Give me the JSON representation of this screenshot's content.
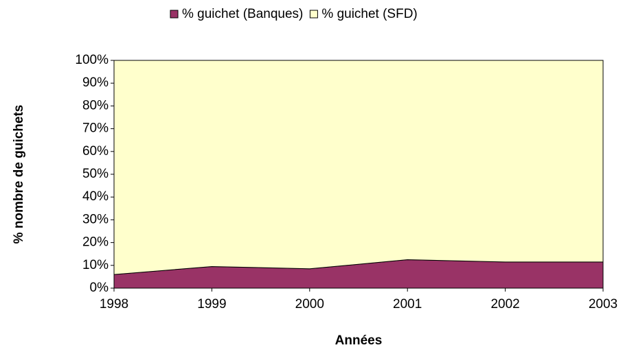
{
  "chart_data": {
    "type": "stacked_area",
    "x_label": "Années",
    "y_label": "% nombre de guichets",
    "x": [
      1998,
      1999,
      2000,
      2001,
      2002,
      2003
    ],
    "xlim": [
      1998,
      2003
    ],
    "xticks": [
      1998,
      1999,
      2000,
      2001,
      2002,
      2003
    ],
    "ylim": [
      0,
      100
    ],
    "yticks": [
      {
        "value": 0,
        "label": "0%"
      },
      {
        "value": 10,
        "label": "10%"
      },
      {
        "value": 20,
        "label": "20%"
      },
      {
        "value": 30,
        "label": "30%"
      },
      {
        "value": 40,
        "label": "40%"
      },
      {
        "value": 50,
        "label": "50%"
      },
      {
        "value": 60,
        "label": "60%"
      },
      {
        "value": 70,
        "label": "70%"
      },
      {
        "value": 80,
        "label": "80%"
      },
      {
        "value": 90,
        "label": "90%"
      },
      {
        "value": 100,
        "label": "100%"
      }
    ],
    "legend": "top",
    "series": [
      {
        "name": "% guichet (Banques)",
        "color": "#993366",
        "values": [
          6,
          9.5,
          8.5,
          12.5,
          11.5,
          11.5
        ]
      },
      {
        "name": "% guichet (SFD)",
        "color": "#FFFFCC",
        "values": [
          94,
          90.5,
          91.5,
          87.5,
          88.5,
          88.5
        ]
      }
    ]
  }
}
